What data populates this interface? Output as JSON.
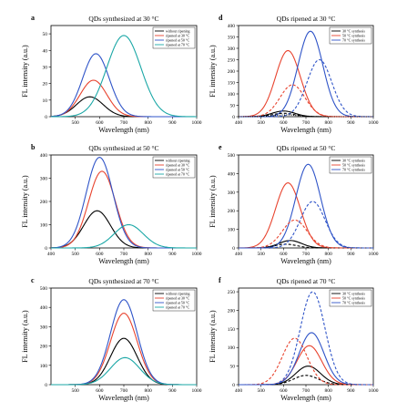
{
  "colors": {
    "c1": "#000000",
    "c2": "#e8432e",
    "c3": "#2f54c8",
    "c4": "#1aa7a6"
  },
  "chart_data": [
    {
      "type": "line",
      "panel_label": "a",
      "title": "QDs synthesized at 30 °C",
      "xlabel": "Wavelength (nm)",
      "ylabel": "FL intensity (a.u.)",
      "xlim": [
        400,
        1000
      ],
      "ylim": [
        0,
        55
      ],
      "xticks": [
        "500",
        "600",
        "700",
        "800",
        "900",
        "1000"
      ],
      "yticks": [
        "0",
        "10",
        "20",
        "30",
        "40",
        "50"
      ],
      "legend": [
        "without ripening",
        "ripened at 30 °C",
        "ripened at 50 °C",
        "ripened at 70 °C"
      ],
      "curves": [
        {
          "peak": 560,
          "amp": 12,
          "width": 55,
          "color": "c1",
          "dash": false
        },
        {
          "peak": 575,
          "amp": 22,
          "width": 55,
          "color": "c2",
          "dash": false
        },
        {
          "peak": 585,
          "amp": 38,
          "width": 55,
          "color": "c3",
          "dash": false
        },
        {
          "peak": 700,
          "amp": 49,
          "width": 70,
          "color": "c4",
          "dash": false
        }
      ]
    },
    {
      "type": "line",
      "panel_label": "b",
      "title": "QDs synthesized at 50 °C",
      "xlabel": "Wavelength (nm)",
      "ylabel": "FL intensity (a.u.)",
      "xlim": [
        400,
        1000
      ],
      "ylim": [
        0,
        400
      ],
      "xticks": [
        "400",
        "500",
        "600",
        "700",
        "800",
        "900",
        "1000"
      ],
      "yticks": [
        "0",
        "100",
        "200",
        "300",
        "400"
      ],
      "legend": [
        "without ripening",
        "ripened at 30 °C",
        "ripened at 50 °C",
        "ripened at 70 °C"
      ],
      "curves": [
        {
          "peak": 590,
          "amp": 160,
          "width": 55,
          "color": "c1",
          "dash": false
        },
        {
          "peak": 610,
          "amp": 330,
          "width": 55,
          "color": "c2",
          "dash": false
        },
        {
          "peak": 600,
          "amp": 390,
          "width": 55,
          "color": "c3",
          "dash": false
        },
        {
          "peak": 720,
          "amp": 100,
          "width": 60,
          "color": "c4",
          "dash": false
        }
      ]
    },
    {
      "type": "line",
      "panel_label": "c",
      "title": "QDs synthesized at 70 °C",
      "xlabel": "Wavelength (nm)",
      "ylabel": "FL intensity (a.u.)",
      "xlim": [
        400,
        1000
      ],
      "ylim": [
        0,
        500
      ],
      "xticks": [
        "500",
        "600",
        "700",
        "800",
        "900",
        "1000"
      ],
      "yticks": [
        "0",
        "100",
        "200",
        "300",
        "400",
        "500"
      ],
      "legend": [
        "without ripening",
        "ripened at 30 °C",
        "ripened at 50 °C",
        "ripened at 70 °C"
      ],
      "curves": [
        {
          "peak": 700,
          "amp": 240,
          "width": 55,
          "color": "c1",
          "dash": false
        },
        {
          "peak": 700,
          "amp": 370,
          "width": 55,
          "color": "c2",
          "dash": false
        },
        {
          "peak": 700,
          "amp": 440,
          "width": 55,
          "color": "c3",
          "dash": false
        },
        {
          "peak": 705,
          "amp": 140,
          "width": 60,
          "color": "c4",
          "dash": false
        }
      ]
    },
    {
      "type": "line",
      "panel_label": "d",
      "title": "QDs ripened at 30 °C",
      "xlabel": "Wavelength (nm)",
      "ylabel": "FL intensity (a.u.)",
      "xlim": [
        400,
        1000
      ],
      "ylim": [
        0,
        400
      ],
      "xticks": [
        "400",
        "500",
        "600",
        "700",
        "800",
        "900",
        "1000"
      ],
      "yticks": [
        "0",
        "50",
        "100",
        "150",
        "200",
        "250",
        "300",
        "350",
        "400"
      ],
      "legend": [
        "30 °C synthesis",
        "50 °C synthesis",
        "70 °C synthesis"
      ],
      "curves": [
        {
          "peak": 600,
          "amp": 25,
          "width": 50,
          "color": "c1",
          "dash": false
        },
        {
          "peak": 620,
          "amp": 290,
          "width": 55,
          "color": "c2",
          "dash": false
        },
        {
          "peak": 720,
          "amp": 375,
          "width": 55,
          "color": "c3",
          "dash": false
        },
        {
          "peak": 600,
          "amp": 15,
          "width": 50,
          "color": "c1",
          "dash": true
        },
        {
          "peak": 640,
          "amp": 140,
          "width": 55,
          "color": "c2",
          "dash": true
        },
        {
          "peak": 760,
          "amp": 250,
          "width": 55,
          "color": "c3",
          "dash": true
        },
        {
          "peak": 610,
          "amp": 8,
          "width": 50,
          "color": "c1",
          "dash": "dot"
        }
      ]
    },
    {
      "type": "line",
      "panel_label": "e",
      "title": "QDs ripened at 50 °C",
      "xlabel": "Wavelength (nm)",
      "ylabel": "FL intensity (a.u.)",
      "xlim": [
        400,
        1000
      ],
      "ylim": [
        0,
        500
      ],
      "xticks": [
        "400",
        "500",
        "600",
        "700",
        "800",
        "900",
        "1000"
      ],
      "yticks": [
        "0",
        "100",
        "200",
        "300",
        "400",
        "500"
      ],
      "legend": [
        "30 °C synthesis",
        "50 °C synthesis",
        "70 °C synthesis"
      ],
      "curves": [
        {
          "peak": 630,
          "amp": 40,
          "width": 50,
          "color": "c1",
          "dash": false
        },
        {
          "peak": 620,
          "amp": 350,
          "width": 55,
          "color": "c2",
          "dash": false
        },
        {
          "peak": 710,
          "amp": 450,
          "width": 55,
          "color": "c3",
          "dash": false
        },
        {
          "peak": 610,
          "amp": 20,
          "width": 50,
          "color": "c1",
          "dash": true
        },
        {
          "peak": 650,
          "amp": 150,
          "width": 55,
          "color": "c2",
          "dash": true
        },
        {
          "peak": 730,
          "amp": 250,
          "width": 55,
          "color": "c3",
          "dash": true
        }
      ]
    },
    {
      "type": "line",
      "panel_label": "f",
      "title": "QDs ripened at 70 °C",
      "xlabel": "Wavelength (nm)",
      "ylabel": "FL intensity (a.u.)",
      "xlim": [
        400,
        1000
      ],
      "ylim": [
        0,
        260
      ],
      "xticks": [
        "400",
        "500",
        "600",
        "700",
        "800",
        "900",
        "1000"
      ],
      "yticks": [
        "0",
        "50",
        "100",
        "150",
        "200",
        "250"
      ],
      "legend": [
        "30 °C synthesis",
        "50 °C synthesis",
        "70 °C synthesis"
      ],
      "curves": [
        {
          "peak": 710,
          "amp": 50,
          "width": 55,
          "color": "c1",
          "dash": false
        },
        {
          "peak": 715,
          "amp": 105,
          "width": 55,
          "color": "c2",
          "dash": false
        },
        {
          "peak": 725,
          "amp": 140,
          "width": 55,
          "color": "c3",
          "dash": false
        },
        {
          "peak": 700,
          "amp": 25,
          "width": 55,
          "color": "c1",
          "dash": true
        },
        {
          "peak": 650,
          "amp": 125,
          "width": 55,
          "color": "c2",
          "dash": true
        },
        {
          "peak": 730,
          "amp": 250,
          "width": 55,
          "color": "c3",
          "dash": true
        }
      ]
    }
  ]
}
